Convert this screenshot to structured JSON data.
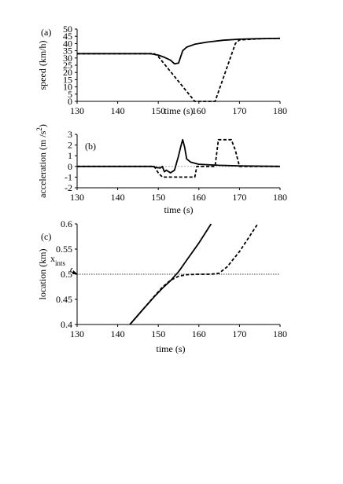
{
  "chart_data": [
    {
      "type": "line",
      "panel_label": "(a)",
      "xlabel": "time (s)",
      "ylabel": "speed (km/h)",
      "xlim": [
        130,
        180
      ],
      "ylim": [
        0,
        50
      ],
      "xticks": [
        130,
        140,
        150,
        160,
        170,
        180
      ],
      "yticks": [
        0,
        5,
        10,
        15,
        20,
        25,
        30,
        35,
        40,
        45,
        50
      ],
      "grid": false,
      "series": [
        {
          "style": "solid",
          "x": [
            130,
            148,
            150,
            151.5,
            153,
            154,
            155,
            156,
            157,
            159,
            162,
            166,
            170,
            174,
            178,
            180
          ],
          "y": [
            33,
            33,
            32,
            30.5,
            28.5,
            26,
            26.5,
            35,
            37.5,
            39.5,
            41,
            42.3,
            43,
            43.3,
            43.5,
            43.6
          ]
        },
        {
          "style": "dashed",
          "x": [
            130,
            149,
            150,
            159,
            164,
            169,
            170,
            175,
            180
          ],
          "y": [
            33,
            33,
            31,
            0,
            0,
            40,
            42.5,
            43.3,
            43.6
          ]
        }
      ]
    },
    {
      "type": "line",
      "panel_label": "(b)",
      "xlabel": "time (s)",
      "ylabel_main": "acceleration  (m /s",
      "ylabel_sup": "2",
      "ylabel_end": ")",
      "xlim": [
        130,
        180
      ],
      "ylim": [
        -2,
        3
      ],
      "xticks": [
        130,
        140,
        150,
        160,
        170,
        180
      ],
      "yticks": [
        -2,
        -1,
        0,
        1,
        2,
        3
      ],
      "grid": false,
      "reference_line": 0,
      "series": [
        {
          "style": "solid",
          "x": [
            130,
            148.5,
            149.5,
            150.5,
            151,
            151.5,
            152,
            153,
            154,
            155,
            155.5,
            156,
            156.5,
            157,
            158,
            160,
            165,
            170,
            180
          ],
          "y": [
            0,
            0,
            -0.1,
            -0.15,
            0,
            -0.5,
            -0.35,
            -0.6,
            -0.35,
            1.0,
            1.8,
            2.5,
            1.8,
            0.7,
            0.4,
            0.2,
            0.1,
            0.05,
            0
          ]
        },
        {
          "style": "dashed",
          "x": [
            130,
            149,
            150,
            151,
            158,
            159,
            159.5,
            164,
            164.8,
            168,
            169,
            170,
            180
          ],
          "y": [
            0,
            0,
            -0.6,
            -1,
            -1,
            -1,
            0,
            0,
            2.5,
            2.5,
            1.5,
            0,
            0
          ]
        }
      ]
    },
    {
      "type": "line",
      "panel_label": "(c)",
      "xlabel": "time (s)",
      "ylabel": "location (km)",
      "xlim": [
        130,
        180
      ],
      "ylim": [
        0.4,
        0.6
      ],
      "xticks": [
        130,
        140,
        150,
        160,
        170,
        180
      ],
      "yticks": [
        0.4,
        0.45,
        0.5,
        0.55,
        0.6
      ],
      "grid": false,
      "reference_line": 0.5,
      "reference_label_main": "x",
      "reference_label_sub": "ints",
      "series": [
        {
          "style": "solid",
          "x": [
            143,
            146,
            149,
            151,
            153,
            155,
            157,
            160,
            163
          ],
          "y": [
            0.4,
            0.428,
            0.455,
            0.472,
            0.487,
            0.505,
            0.528,
            0.562,
            0.6
          ]
        },
        {
          "style": "dashed",
          "x": [
            143,
            146,
            149,
            151,
            153,
            155,
            157,
            160,
            163,
            165,
            167,
            170,
            174.5
          ],
          "y": [
            0.4,
            0.428,
            0.456,
            0.474,
            0.488,
            0.496,
            0.499,
            0.5,
            0.5,
            0.502,
            0.515,
            0.545,
            0.6
          ]
        }
      ]
    }
  ]
}
